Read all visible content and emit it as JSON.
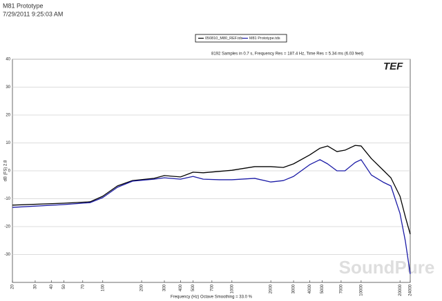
{
  "header": {
    "title": "M81 Prototype",
    "timestamp": "7/29/2011 9:25:03 AM"
  },
  "chart_data": {
    "type": "line",
    "subtitle": "8192 Samples in 0.7 s, Frequency Res = 187.4 Hz, Time Res = 5.34 ms (6.03 feet)",
    "xlabel": "Frequency (Hz) Octave Smoothing = 33.0 %",
    "ylabel": "dB (FS) 2.8",
    "logo": "TEF",
    "watermark": "SoundPure",
    "x": [
      20,
      50,
      80,
      100,
      130,
      170,
      250,
      300,
      400,
      500,
      600,
      800,
      1000,
      1500,
      2000,
      2500,
      3000,
      4000,
      4800,
      5500,
      6500,
      7500,
      9000,
      10000,
      12000,
      15000,
      17000,
      20000,
      22000,
      24000
    ],
    "series": [
      {
        "name": "050810_M80_REF.tds",
        "color": "#000000",
        "values": [
          -12.3,
          -11.6,
          -11.1,
          -9.1,
          -5.4,
          -3.5,
          -2.7,
          -1.7,
          -2.2,
          -0.5,
          -0.7,
          -0.2,
          0.2,
          1.5,
          1.5,
          1.2,
          2.5,
          5.7,
          8.1,
          8.9,
          6.9,
          7.4,
          9.1,
          8.9,
          4.4,
          0,
          -2.5,
          -9.1,
          -16.5,
          -22.7
        ]
      },
      {
        "name": "M81 Prototype.tds",
        "color": "#1a1aa6",
        "values": [
          -13.1,
          -12.1,
          -11.4,
          -9.6,
          -5.9,
          -3.7,
          -3,
          -2.5,
          -3,
          -2,
          -3,
          -3.2,
          -3.2,
          -2.7,
          -4,
          -3.5,
          -2,
          2.2,
          4,
          2.5,
          0,
          0,
          3,
          4,
          -1.5,
          -4.2,
          -5.4,
          -15.3,
          -25.2,
          -37
        ]
      }
    ],
    "xscale": "log",
    "xlim": [
      20,
      24000
    ],
    "xticks": [
      20,
      30,
      40,
      50,
      70,
      100,
      200,
      300,
      400,
      500,
      700,
      1000,
      2000,
      3000,
      4000,
      5000,
      7000,
      10000,
      20000,
      24000
    ],
    "ylim": [
      -40,
      40
    ],
    "yticks": [
      -30,
      -20,
      -10,
      0,
      10,
      20,
      30,
      40
    ],
    "grid": true
  }
}
